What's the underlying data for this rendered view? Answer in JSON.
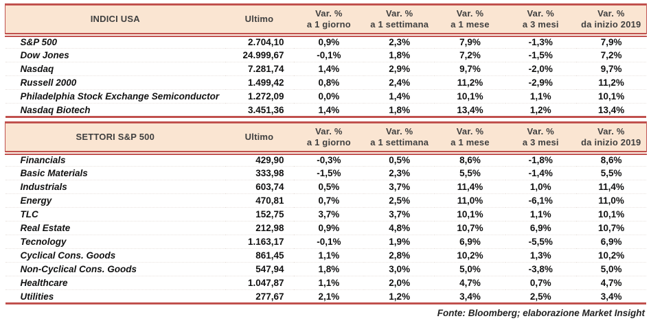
{
  "colors": {
    "accent_red": "#C0504D",
    "header_fill": "#FAE5D2",
    "header_text": "#3F3F3F"
  },
  "labels": {
    "ultimo": "Ultimo",
    "var_cols": [
      {
        "l1": "Var. %",
        "l2": "a 1 giorno"
      },
      {
        "l1": "Var. %",
        "l2": "a 1 settimana"
      },
      {
        "l1": "Var. %",
        "l2": "a 1 mese"
      },
      {
        "l1": "Var. %",
        "l2": "a 3 mesi"
      },
      {
        "l1": "Var. %",
        "l2": "da inizio 2019"
      }
    ]
  },
  "tables": [
    {
      "title": "INDICI USA",
      "rows": [
        {
          "name": "S&P 500",
          "ultimo": "2.704,10",
          "vars": [
            "0,9%",
            "2,3%",
            "7,9%",
            "-1,3%",
            "7,9%"
          ]
        },
        {
          "name": "Dow Jones",
          "ultimo": "24.999,67",
          "vars": [
            "-0,1%",
            "1,8%",
            "7,2%",
            "-1,5%",
            "7,2%"
          ]
        },
        {
          "name": "Nasdaq",
          "ultimo": "7.281,74",
          "vars": [
            "1,4%",
            "2,9%",
            "9,7%",
            "-2,0%",
            "9,7%"
          ]
        },
        {
          "name": "Russell 2000",
          "ultimo": "1.499,42",
          "vars": [
            "0,8%",
            "2,4%",
            "11,2%",
            "-2,9%",
            "11,2%"
          ]
        },
        {
          "name": "Philadelphia Stock Exchange Semiconductor",
          "ultimo": "1.272,09",
          "vars": [
            "0,0%",
            "1,4%",
            "10,1%",
            "1,1%",
            "10,1%"
          ]
        },
        {
          "name": "Nasdaq Biotech",
          "ultimo": "3.451,36",
          "vars": [
            "1,4%",
            "1,8%",
            "13,4%",
            "1,2%",
            "13,4%"
          ]
        }
      ]
    },
    {
      "title": "SETTORI S&P 500",
      "rows": [
        {
          "name": "Financials",
          "ultimo": "429,90",
          "vars": [
            "-0,3%",
            "0,5%",
            "8,6%",
            "-1,8%",
            "8,6%"
          ]
        },
        {
          "name": "Basic Materials",
          "ultimo": "333,98",
          "vars": [
            "-1,5%",
            "2,3%",
            "5,5%",
            "-1,4%",
            "5,5%"
          ]
        },
        {
          "name": "Industrials",
          "ultimo": "603,74",
          "vars": [
            "0,5%",
            "3,7%",
            "11,4%",
            "1,0%",
            "11,4%"
          ]
        },
        {
          "name": "Energy",
          "ultimo": "470,81",
          "vars": [
            "0,7%",
            "2,5%",
            "11,0%",
            "-6,1%",
            "11,0%"
          ]
        },
        {
          "name": "TLC",
          "ultimo": "152,75",
          "vars": [
            "3,7%",
            "3,7%",
            "10,1%",
            "1,1%",
            "10,1%"
          ]
        },
        {
          "name": "Real Estate",
          "ultimo": "212,98",
          "vars": [
            "0,9%",
            "4,8%",
            "10,7%",
            "6,9%",
            "10,7%"
          ]
        },
        {
          "name": "Tecnology",
          "ultimo": "1.163,17",
          "vars": [
            "-0,1%",
            "1,9%",
            "6,9%",
            "-5,5%",
            "6,9%"
          ]
        },
        {
          "name": "Cyclical Cons. Goods",
          "ultimo": "861,45",
          "vars": [
            "1,1%",
            "2,8%",
            "10,2%",
            "1,3%",
            "10,2%"
          ]
        },
        {
          "name": "Non-Cyclical Cons. Goods",
          "ultimo": "547,94",
          "vars": [
            "1,8%",
            "3,0%",
            "5,0%",
            "-3,8%",
            "5,0%"
          ]
        },
        {
          "name": "Healthcare",
          "ultimo": "1.047,87",
          "vars": [
            "1,1%",
            "2,0%",
            "4,7%",
            "0,7%",
            "4,7%"
          ]
        },
        {
          "name": "Utilities",
          "ultimo": "277,67",
          "vars": [
            "2,1%",
            "1,2%",
            "3,4%",
            "2,5%",
            "3,4%"
          ]
        }
      ]
    }
  ],
  "footer": {
    "text": "Fonte: Bloomberg; elaborazione Market Insight"
  }
}
